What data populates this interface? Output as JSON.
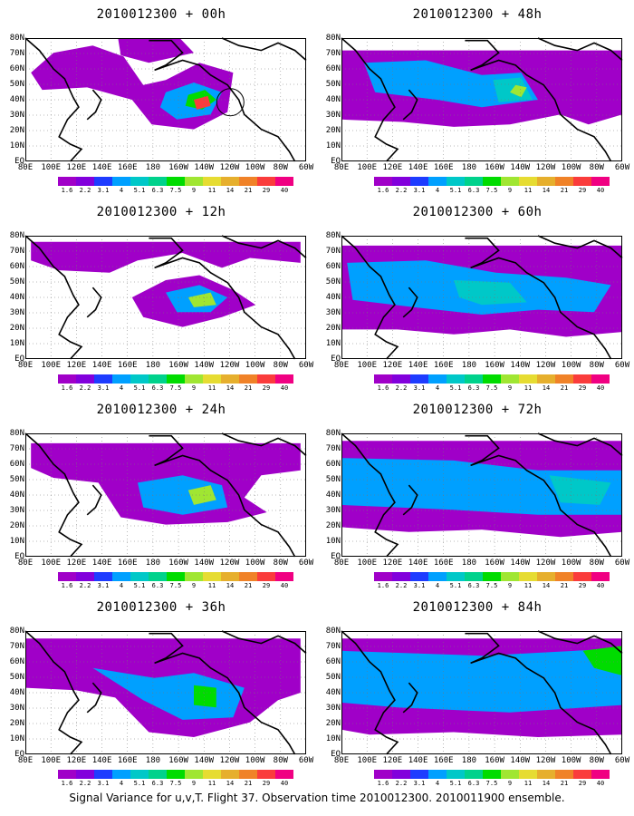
{
  "legend": {
    "levels": [
      "1.6",
      "2.2",
      "3.1",
      "4",
      "5.1",
      "6.3",
      "7.5",
      "9",
      "11",
      "14",
      "21",
      "29",
      "40"
    ],
    "colors": [
      "#a000c8",
      "#8200dc",
      "#1e3cff",
      "#00a0ff",
      "#00c8c8",
      "#00d28c",
      "#00dc00",
      "#a0e632",
      "#e6dc32",
      "#e6af2d",
      "#f08228",
      "#fa3c3c",
      "#f00082"
    ]
  },
  "axes": {
    "lon_labels": [
      "80E",
      "100E",
      "120E",
      "140E",
      "160E",
      "180",
      "160W",
      "140W",
      "120W",
      "100W",
      "80W",
      "60W"
    ],
    "lat_labels": [
      "80N",
      "70N",
      "60N",
      "50N",
      "40N",
      "30N",
      "20N",
      "10N",
      "EQ"
    ]
  },
  "panels": [
    {
      "title": "2010012300 + 00h"
    },
    {
      "title": "2010012300 + 48h"
    },
    {
      "title": "2010012300 + 12h"
    },
    {
      "title": "2010012300 + 60h"
    },
    {
      "title": "2010012300 + 24h"
    },
    {
      "title": "2010012300 + 72h"
    },
    {
      "title": "2010012300 + 36h"
    },
    {
      "title": "2010012300 + 84h"
    }
  ],
  "footer": "Signal Variance for u,v,T. Flight 37. Observation time 2010012300. 2010011900 ensemble."
}
